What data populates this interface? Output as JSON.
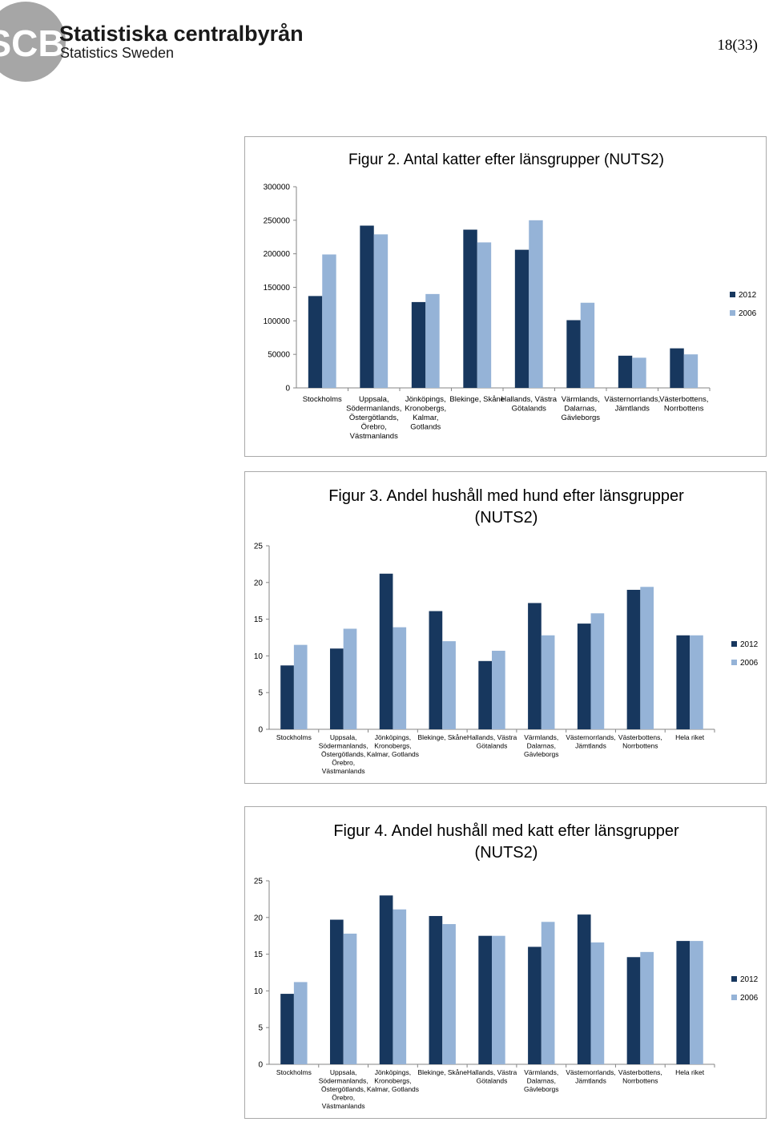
{
  "header": {
    "org_name": "Statistiska centralbyrån",
    "org_name_en": "Statistics Sweden",
    "logo_mark": "SCB",
    "page_number": "18(33)"
  },
  "colors": {
    "series_2012": "#17375e",
    "series_2006": "#95b3d7",
    "axis": "#868686",
    "frame": "#a9a9a9"
  },
  "chart_data": [
    {
      "type": "bar",
      "title": "Figur 2. Antal katter efter länsgrupper (NUTS2)",
      "categories": [
        [
          "Stockholms"
        ],
        [
          "Uppsala,",
          "Södermanlands,",
          "Östergötlands,",
          "Örebro,",
          "Västmanlands"
        ],
        [
          "Jönköpings,",
          "Kronobergs,",
          "Kalmar,",
          "Gotlands"
        ],
        [
          "Blekinge, Skåne"
        ],
        [
          "Hallands, Västra",
          "Götalands"
        ],
        [
          "Värmlands,",
          "Dalarnas,",
          "Gävleborgs"
        ],
        [
          "Västernorrlands,",
          "Jämtlands"
        ],
        [
          "Västerbottens,",
          "Norrbottens"
        ]
      ],
      "series": [
        {
          "name": "2012",
          "values": [
            137000,
            242000,
            128000,
            236000,
            206000,
            101000,
            48000,
            59000
          ]
        },
        {
          "name": "2006",
          "values": [
            199000,
            229000,
            140000,
            217000,
            250000,
            127000,
            45000,
            50000
          ]
        }
      ],
      "ylim": [
        0,
        300000
      ],
      "yticks": [
        0,
        50000,
        100000,
        150000,
        200000,
        250000,
        300000
      ],
      "ytick_labels": [
        "0",
        "50000",
        "100000",
        "150000",
        "200000",
        "250000",
        "300000"
      ],
      "legend": [
        "2012",
        "2006"
      ],
      "legend_position": "right",
      "grid": false
    },
    {
      "type": "bar",
      "title": "Figur 3. Andel hushåll med hund efter länsgrupper (NUTS2)",
      "categories": [
        [
          "Stockholms"
        ],
        [
          "Uppsala,",
          "Södermanlands,",
          "Östergötlands,",
          "Örebro,",
          "Västmanlands"
        ],
        [
          "Jönköpings,",
          "Kronobergs,",
          "Kalmar, Gotlands"
        ],
        [
          "Blekinge, Skåne"
        ],
        [
          "Hallands, Västra",
          "Götalands"
        ],
        [
          "Värmlands,",
          "Dalarnas,",
          "Gävleborgs"
        ],
        [
          "Västernorrlands,",
          "Jämtlands"
        ],
        [
          "Västerbottens,",
          "Norrbottens"
        ],
        [
          "Hela riket"
        ]
      ],
      "series": [
        {
          "name": "2012",
          "values": [
            8.7,
            11.0,
            21.2,
            16.1,
            9.3,
            17.2,
            14.4,
            19.0,
            12.8
          ]
        },
        {
          "name": "2006",
          "values": [
            11.5,
            13.7,
            13.9,
            12.0,
            10.7,
            12.8,
            15.8,
            19.4,
            12.8
          ]
        }
      ],
      "ylim": [
        0,
        25
      ],
      "yticks": [
        0,
        5,
        10,
        15,
        20,
        25
      ],
      "ytick_labels": [
        "0",
        "5",
        "10",
        "15",
        "20",
        "25"
      ],
      "legend": [
        "2012",
        "2006"
      ],
      "legend_position": "right",
      "grid": false
    },
    {
      "type": "bar",
      "title": "Figur 4. Andel hushåll med katt efter länsgrupper (NUTS2)",
      "categories": [
        [
          "Stockholms"
        ],
        [
          "Uppsala,",
          "Södermanlands,",
          "Östergötlands,",
          "Örebro,",
          "Västmanlands"
        ],
        [
          "Jönköpings,",
          "Kronobergs,",
          "Kalmar, Gotlands"
        ],
        [
          "Blekinge, Skåne"
        ],
        [
          "Hallands, Västra",
          "Götalands"
        ],
        [
          "Värmlands,",
          "Dalarnas,",
          "Gävleborgs"
        ],
        [
          "Västernorrlands,",
          "Jämtlands"
        ],
        [
          "Västerbottens,",
          "Norrbottens"
        ],
        [
          "Hela riket"
        ]
      ],
      "series": [
        {
          "name": "2012",
          "values": [
            9.6,
            19.7,
            23.0,
            20.2,
            17.5,
            16.0,
            20.4,
            14.6,
            16.8
          ]
        },
        {
          "name": "2006",
          "values": [
            11.2,
            17.8,
            21.1,
            19.1,
            17.5,
            19.4,
            16.6,
            15.3,
            16.8
          ]
        }
      ],
      "ylim": [
        0,
        25
      ],
      "yticks": [
        0,
        5,
        10,
        15,
        20,
        25
      ],
      "ytick_labels": [
        "0",
        "5",
        "10",
        "15",
        "20",
        "25"
      ],
      "legend": [
        "2012",
        "2006"
      ],
      "legend_position": "right",
      "grid": false
    }
  ]
}
